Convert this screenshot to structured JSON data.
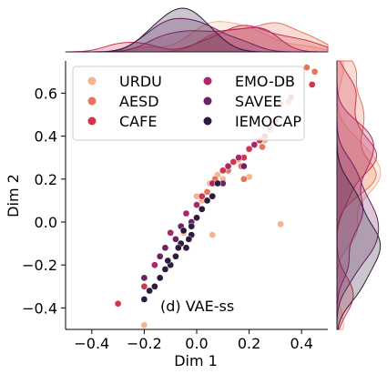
{
  "chart_data": {
    "type": "scatter",
    "title": "",
    "xlabel": "Dim 1",
    "ylabel": "Dim 2",
    "xlim": [
      -0.5,
      0.5
    ],
    "ylim": [
      -0.5,
      0.75
    ],
    "xticks": [
      -0.4,
      -0.2,
      0.0,
      0.2,
      0.4
    ],
    "xtick_labels": [
      "−0.4",
      "−0.2",
      "0.0",
      "0.2",
      "0.4"
    ],
    "yticks": [
      -0.4,
      -0.2,
      0.0,
      0.2,
      0.4,
      0.6
    ],
    "ytick_labels": [
      "−0.4",
      "−0.2",
      "0.0",
      "0.2",
      "0.4",
      "0.6"
    ],
    "annotation": "(d) VAE-ss",
    "grid": false,
    "legend_position": "top-left",
    "marginals": "kde",
    "series": [
      {
        "name": "URDU",
        "color": "#f5b58f",
        "points": [
          [
            0.08,
            0.22
          ],
          [
            0.12,
            0.26
          ],
          [
            0.05,
            0.18
          ],
          [
            0.18,
            0.3
          ],
          [
            0.02,
            0.1
          ],
          [
            0.26,
            0.38
          ],
          [
            0.1,
            0.2
          ],
          [
            -0.05,
            -0.05
          ],
          [
            0.32,
            -0.01
          ],
          [
            0.16,
            0.29
          ],
          [
            0.2,
            0.21
          ],
          [
            0.22,
            0.36
          ],
          [
            0.06,
            -0.06
          ],
          [
            0.42,
            0.72
          ],
          [
            -0.2,
            -0.48
          ],
          [
            0.0,
            0.12
          ]
        ]
      },
      {
        "name": "AESD",
        "color": "#e87559",
        "points": [
          [
            0.3,
            0.46
          ],
          [
            0.35,
            0.56
          ],
          [
            0.42,
            0.72
          ],
          [
            0.45,
            0.7
          ],
          [
            0.25,
            0.35
          ],
          [
            0.28,
            0.43
          ],
          [
            0.17,
            0.26
          ],
          [
            0.12,
            0.24
          ],
          [
            0.07,
            0.2
          ],
          [
            0.18,
            0.2
          ],
          [
            0.04,
            0.14
          ],
          [
            0.32,
            0.55
          ]
        ]
      },
      {
        "name": "CAFE",
        "color": "#d0364a",
        "points": [
          [
            0.44,
            0.64
          ],
          [
            0.36,
            0.58
          ],
          [
            0.3,
            0.47
          ],
          [
            0.24,
            0.38
          ],
          [
            0.2,
            0.34
          ],
          [
            0.14,
            0.28
          ],
          [
            0.1,
            0.24
          ],
          [
            0.02,
            0.12
          ],
          [
            -0.2,
            -0.3
          ],
          [
            -0.3,
            -0.38
          ],
          [
            0.18,
            0.3
          ]
        ]
      },
      {
        "name": "EMO-DB",
        "color": "#a8286a",
        "points": [
          [
            0.28,
            0.44
          ],
          [
            0.26,
            0.4
          ],
          [
            0.22,
            0.36
          ],
          [
            0.16,
            0.3
          ],
          [
            0.12,
            0.26
          ],
          [
            0.06,
            0.18
          ],
          [
            0.0,
            0.08
          ],
          [
            -0.04,
            0.04
          ],
          [
            -0.1,
            -0.05
          ],
          [
            -0.16,
            -0.2
          ]
        ]
      },
      {
        "name": "SAVEE",
        "color": "#6d2263",
        "points": [
          [
            0.18,
            0.26
          ],
          [
            0.1,
            0.18
          ],
          [
            0.04,
            0.1
          ],
          [
            -0.02,
            0.0
          ],
          [
            -0.08,
            -0.08
          ],
          [
            -0.14,
            -0.16
          ],
          [
            -0.2,
            -0.26
          ],
          [
            -0.06,
            -0.02
          ],
          [
            0.02,
            0.06
          ],
          [
            -0.12,
            -0.12
          ]
        ]
      },
      {
        "name": "IEMOCAP",
        "color": "#2e1a3c",
        "points": [
          [
            -0.04,
            -0.12
          ],
          [
            -0.02,
            -0.06
          ],
          [
            0.0,
            0.02
          ],
          [
            0.02,
            0.06
          ],
          [
            -0.06,
            -0.1
          ],
          [
            -0.08,
            -0.16
          ],
          [
            -0.1,
            -0.2
          ],
          [
            -0.12,
            -0.22
          ],
          [
            -0.14,
            -0.26
          ],
          [
            -0.16,
            -0.3
          ],
          [
            -0.18,
            -0.32
          ],
          [
            -0.2,
            -0.36
          ],
          [
            0.04,
            0.1
          ],
          [
            0.06,
            0.12
          ],
          [
            0.08,
            0.18
          ],
          [
            -0.02,
            -0.02
          ],
          [
            -0.05,
            -0.04
          ],
          [
            -0.07,
            -0.12
          ],
          [
            -0.11,
            -0.18
          ],
          [
            -0.03,
            -0.08
          ]
        ]
      }
    ]
  }
}
